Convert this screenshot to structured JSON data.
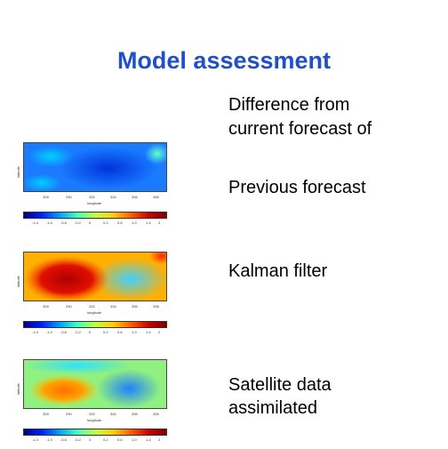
{
  "slide": {
    "title": "Model assessment",
    "intro": [
      "Difference from",
      "current forecast of"
    ],
    "panels": [
      {
        "label": [
          "Previous forecast"
        ]
      },
      {
        "label": [
          "Kalman filter"
        ]
      },
      {
        "label": [
          "Satellite data",
          "assimilated"
        ]
      }
    ]
  },
  "maps": {
    "x_ticks": [
      "328",
      "330",
      "332",
      "334",
      "336",
      "338"
    ],
    "colorbar_ticks": [
      "-1.4",
      "-1.0",
      "-0.6",
      "-0.2",
      "0",
      "0.2",
      "0.6",
      "1.0",
      "1.4",
      "2"
    ]
  }
}
